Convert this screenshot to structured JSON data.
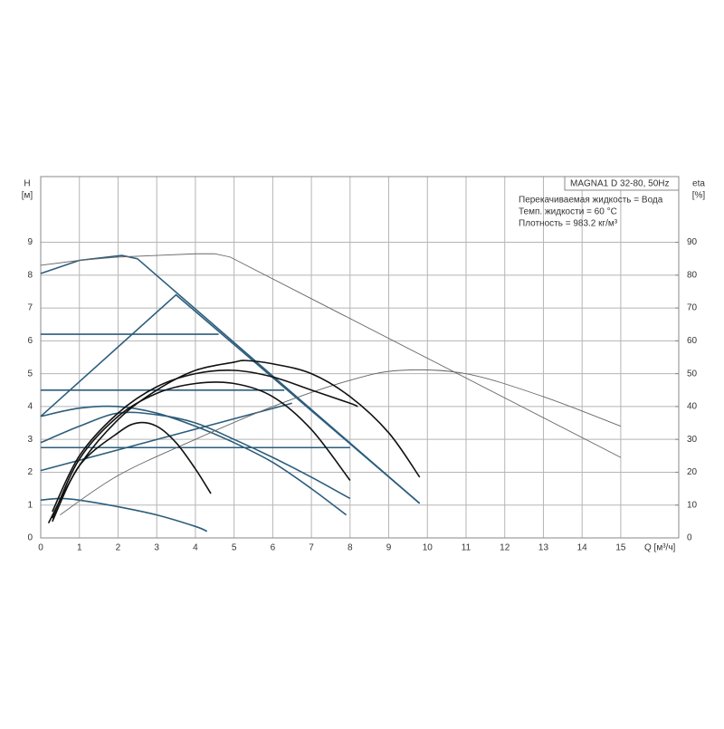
{
  "chart_data": {
    "type": "line",
    "title": "MAGNA1 D 32-80, 50Hz",
    "annotations": [
      "Перекачиваемая жидкость = Вода",
      "Темп. жидкости = 60 °C",
      "Плотность = 983.2 кг/м³"
    ],
    "y_label": "H",
    "y_unit": "[м]",
    "y2_label": "eta",
    "y2_unit": "[%]",
    "x_label": "Q [м³/ч]",
    "xlim": [
      0,
      16.5
    ],
    "ylim": [
      0,
      11
    ],
    "y2lim": [
      0,
      110
    ],
    "xticks": [
      0,
      1,
      2,
      3,
      4,
      5,
      6,
      7,
      8,
      9,
      10,
      11,
      12,
      13,
      14,
      15
    ],
    "yticks": [
      0,
      1,
      2,
      3,
      4,
      5,
      6,
      7,
      8,
      9
    ],
    "y2ticks": [
      0,
      10,
      20,
      30,
      40,
      50,
      60,
      70,
      80,
      90
    ],
    "grid": true,
    "series": [
      {
        "color": "#2c5d7c",
        "smooth": false,
        "x": [
          0,
          1,
          2.1,
          2.5,
          9.8
        ],
        "values": [
          8.05,
          8.45,
          8.6,
          8.5,
          1.05
        ]
      },
      {
        "color": "#2c5d7c",
        "smooth": false,
        "x": [
          0,
          3.5,
          9.8
        ],
        "values": [
          3.7,
          7.4,
          1.05
        ]
      },
      {
        "color": "#2c5d7c",
        "smooth": false,
        "x": [
          0,
          4.6
        ],
        "values": [
          6.2,
          6.2
        ]
      },
      {
        "color": "#2c5d7c",
        "smooth": false,
        "x": [
          0,
          6.3
        ],
        "values": [
          4.5,
          4.5
        ]
      },
      {
        "color": "#2c5d7c",
        "smooth": false,
        "x": [
          0,
          8
        ],
        "values": [
          2.75,
          2.75
        ]
      },
      {
        "color": "#2c5d7c",
        "smooth": true,
        "x": [
          0,
          1,
          2,
          3,
          4,
          5,
          6,
          7,
          7.9
        ],
        "values": [
          3.7,
          3.95,
          4.0,
          3.8,
          3.4,
          2.9,
          2.3,
          1.5,
          0.7
        ]
      },
      {
        "color": "#2c5d7c",
        "smooth": true,
        "x": [
          0,
          1,
          2,
          3,
          4,
          5,
          6,
          7,
          8
        ],
        "values": [
          2.9,
          3.4,
          3.8,
          3.75,
          3.5,
          3.0,
          2.45,
          1.85,
          1.2
        ]
      },
      {
        "color": "#2c5d7c",
        "smooth": false,
        "x": [
          0,
          6.5
        ],
        "values": [
          2.05,
          4.1
        ]
      },
      {
        "color": "#2c5d7c",
        "smooth": true,
        "x": [
          0,
          0.5,
          1,
          2,
          3,
          4,
          4.3
        ],
        "values": [
          1.15,
          1.2,
          1.15,
          0.95,
          0.7,
          0.35,
          0.2
        ]
      },
      {
        "color": "#666666",
        "smooth": false,
        "x": [
          0,
          1,
          2,
          3,
          4,
          4.5,
          4.9,
          15
        ],
        "values": [
          8.3,
          8.45,
          8.55,
          8.6,
          8.65,
          8.65,
          8.55,
          2.45
        ]
      },
      {
        "color": "#666666",
        "smooth": true,
        "axis": "y2",
        "x": [
          0.5,
          2,
          4,
          6,
          8,
          9.3,
          11,
          13,
          15
        ],
        "values": [
          7,
          19,
          30,
          40,
          48,
          51,
          50,
          43,
          34
        ]
      },
      {
        "color": "#111111",
        "smooth": true,
        "axis": "y2",
        "x": [
          0.2,
          1,
          2,
          3,
          4,
          5,
          5.3,
          6,
          7,
          8,
          9,
          9.8
        ],
        "values": [
          4.5,
          22,
          36,
          45,
          51,
          53.5,
          54,
          53,
          50,
          43,
          32,
          18.5
        ]
      },
      {
        "color": "#111111",
        "smooth": true,
        "axis": "y2",
        "x": [
          0.3,
          1,
          2,
          2.5,
          3,
          3.5,
          4,
          4.4
        ],
        "values": [
          5,
          22,
          32,
          35,
          34,
          29,
          21,
          13.5
        ]
      },
      {
        "color": "#111111",
        "smooth": true,
        "axis": "y2",
        "x": [
          0.3,
          1,
          2,
          3,
          4,
          5,
          6,
          7,
          8
        ],
        "values": [
          6,
          24,
          37,
          44,
          47,
          47,
          43,
          33,
          17.5
        ]
      },
      {
        "color": "#111111",
        "smooth": true,
        "axis": "y2",
        "x": [
          0.3,
          1,
          2,
          3,
          4,
          5,
          6,
          7,
          8,
          8.2
        ],
        "values": [
          8,
          25,
          38,
          46,
          50,
          51,
          49,
          45,
          41,
          40
        ]
      }
    ]
  }
}
